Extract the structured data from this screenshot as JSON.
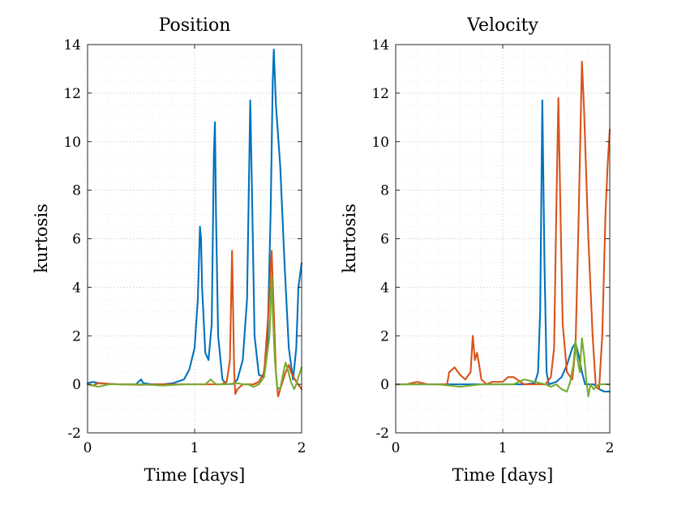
{
  "colors": {
    "blue": "#0072BD",
    "orange": "#D95319",
    "green": "#77AC30"
  },
  "chart_data": [
    {
      "type": "line",
      "title": "Position",
      "xlabel": "Time [days]",
      "ylabel": "kurtosis",
      "xlim": [
        0,
        2
      ],
      "ylim": [
        -2,
        14
      ],
      "xticks": [
        0,
        1,
        2
      ],
      "yticks": [
        -2,
        0,
        2,
        4,
        6,
        8,
        10,
        12,
        14
      ],
      "grid": true,
      "series": [
        {
          "name": "blue",
          "color": "#0072BD",
          "points": [
            [
              0,
              0.05
            ],
            [
              0.05,
              0.1
            ],
            [
              0.1,
              0.05
            ],
            [
              0.2,
              0.02
            ],
            [
              0.3,
              0
            ],
            [
              0.45,
              0
            ],
            [
              0.5,
              0.2
            ],
            [
              0.52,
              0.05
            ],
            [
              0.6,
              0
            ],
            [
              0.7,
              0
            ],
            [
              0.8,
              0.05
            ],
            [
              0.9,
              0.2
            ],
            [
              0.95,
              0.6
            ],
            [
              1.0,
              1.5
            ],
            [
              1.03,
              3.5
            ],
            [
              1.05,
              6.5
            ],
            [
              1.06,
              6.0
            ],
            [
              1.07,
              4
            ],
            [
              1.1,
              1.3
            ],
            [
              1.13,
              1.0
            ],
            [
              1.16,
              2.5
            ],
            [
              1.18,
              9.5
            ],
            [
              1.19,
              10.8
            ],
            [
              1.2,
              7
            ],
            [
              1.22,
              2
            ],
            [
              1.26,
              0.2
            ],
            [
              1.3,
              0
            ],
            [
              1.36,
              0.02
            ],
            [
              1.4,
              0.2
            ],
            [
              1.45,
              1.0
            ],
            [
              1.49,
              3.5
            ],
            [
              1.52,
              11.7
            ],
            [
              1.54,
              7
            ],
            [
              1.56,
              2
            ],
            [
              1.6,
              0.4
            ],
            [
              1.64,
              0.3
            ],
            [
              1.68,
              1.5
            ],
            [
              1.71,
              7
            ],
            [
              1.73,
              12.5
            ],
            [
              1.74,
              13.8
            ],
            [
              1.76,
              11.5
            ],
            [
              1.8,
              9
            ],
            [
              1.84,
              5
            ],
            [
              1.88,
              1.5
            ],
            [
              1.92,
              0.2
            ],
            [
              1.95,
              1.5
            ],
            [
              1.97,
              4.0
            ],
            [
              2.0,
              5.0
            ]
          ]
        },
        {
          "name": "orange",
          "color": "#D95319",
          "points": [
            [
              0,
              0
            ],
            [
              0.05,
              -0.05
            ],
            [
              0.1,
              0.05
            ],
            [
              0.2,
              0.02
            ],
            [
              0.3,
              0
            ],
            [
              0.5,
              -0.02
            ],
            [
              0.7,
              0
            ],
            [
              0.9,
              0
            ],
            [
              1.1,
              0
            ],
            [
              1.2,
              0
            ],
            [
              1.25,
              0
            ],
            [
              1.3,
              0.1
            ],
            [
              1.33,
              1.0
            ],
            [
              1.35,
              5.5
            ],
            [
              1.36,
              3.0
            ],
            [
              1.37,
              0.5
            ],
            [
              1.38,
              -0.4
            ],
            [
              1.4,
              -0.2
            ],
            [
              1.45,
              0
            ],
            [
              1.5,
              0
            ],
            [
              1.55,
              0
            ],
            [
              1.6,
              0.1
            ],
            [
              1.65,
              0.5
            ],
            [
              1.69,
              3
            ],
            [
              1.72,
              5.5
            ],
            [
              1.74,
              3
            ],
            [
              1.76,
              0.5
            ],
            [
              1.78,
              -0.5
            ],
            [
              1.8,
              -0.2
            ],
            [
              1.85,
              0.5
            ],
            [
              1.88,
              0.8
            ],
            [
              1.9,
              0.5
            ],
            [
              1.95,
              0.1
            ],
            [
              2.0,
              -0.2
            ]
          ]
        },
        {
          "name": "green",
          "color": "#77AC30",
          "points": [
            [
              0,
              0
            ],
            [
              0.1,
              -0.1
            ],
            [
              0.2,
              0
            ],
            [
              0.3,
              0
            ],
            [
              0.5,
              0
            ],
            [
              0.7,
              -0.05
            ],
            [
              0.9,
              0
            ],
            [
              1.1,
              0
            ],
            [
              1.15,
              0.2
            ],
            [
              1.2,
              0
            ],
            [
              1.3,
              0
            ],
            [
              1.4,
              0.05
            ],
            [
              1.45,
              0
            ],
            [
              1.5,
              0
            ],
            [
              1.55,
              -0.1
            ],
            [
              1.6,
              0
            ],
            [
              1.65,
              0.3
            ],
            [
              1.7,
              2
            ],
            [
              1.72,
              4.5
            ],
            [
              1.73,
              3
            ],
            [
              1.75,
              1.0
            ],
            [
              1.77,
              -0.1
            ],
            [
              1.8,
              -0.2
            ],
            [
              1.83,
              0.5
            ],
            [
              1.85,
              0.9
            ],
            [
              1.87,
              0.6
            ],
            [
              1.9,
              0.1
            ],
            [
              1.93,
              -0.2
            ],
            [
              1.95,
              0
            ],
            [
              1.97,
              0.3
            ],
            [
              2.0,
              0.7
            ]
          ]
        }
      ]
    },
    {
      "type": "line",
      "title": "Velocity",
      "xlabel": "Time [days]",
      "ylabel": "kurtosis",
      "xlim": [
        0,
        2
      ],
      "ylim": [
        -2,
        14
      ],
      "xticks": [
        0,
        1,
        2
      ],
      "yticks": [
        -2,
        0,
        2,
        4,
        6,
        8,
        10,
        12,
        14
      ],
      "grid": true,
      "series": [
        {
          "name": "blue",
          "color": "#0072BD",
          "points": [
            [
              0,
              0
            ],
            [
              0.2,
              0
            ],
            [
              0.4,
              0
            ],
            [
              0.6,
              0
            ],
            [
              0.8,
              0
            ],
            [
              1.0,
              0
            ],
            [
              1.2,
              0
            ],
            [
              1.3,
              0.05
            ],
            [
              1.33,
              0.5
            ],
            [
              1.35,
              3
            ],
            [
              1.37,
              11.7
            ],
            [
              1.39,
              5
            ],
            [
              1.41,
              0.5
            ],
            [
              1.43,
              0
            ],
            [
              1.5,
              0.1
            ],
            [
              1.55,
              0.3
            ],
            [
              1.6,
              0.8
            ],
            [
              1.65,
              1.5
            ],
            [
              1.68,
              1.7
            ],
            [
              1.71,
              1.2
            ],
            [
              1.74,
              0.5
            ],
            [
              1.77,
              0
            ],
            [
              1.8,
              0
            ],
            [
              1.85,
              0
            ],
            [
              1.9,
              -0.2
            ],
            [
              1.95,
              -0.3
            ],
            [
              2.0,
              -0.3
            ]
          ]
        },
        {
          "name": "orange",
          "color": "#D95319",
          "points": [
            [
              0,
              0
            ],
            [
              0.1,
              0
            ],
            [
              0.2,
              0.1
            ],
            [
              0.3,
              0
            ],
            [
              0.4,
              0
            ],
            [
              0.48,
              0
            ],
            [
              0.5,
              0.5
            ],
            [
              0.55,
              0.7
            ],
            [
              0.6,
              0.4
            ],
            [
              0.65,
              0.2
            ],
            [
              0.7,
              0.5
            ],
            [
              0.72,
              2.0
            ],
            [
              0.74,
              1.0
            ],
            [
              0.76,
              1.3
            ],
            [
              0.78,
              0.8
            ],
            [
              0.8,
              0.2
            ],
            [
              0.85,
              0
            ],
            [
              0.9,
              0.1
            ],
            [
              1.0,
              0.1
            ],
            [
              1.05,
              0.3
            ],
            [
              1.1,
              0.3
            ],
            [
              1.2,
              0
            ],
            [
              1.3,
              0
            ],
            [
              1.4,
              0
            ],
            [
              1.45,
              0.3
            ],
            [
              1.48,
              1.5
            ],
            [
              1.5,
              7
            ],
            [
              1.52,
              11.8
            ],
            [
              1.54,
              7
            ],
            [
              1.56,
              2.5
            ],
            [
              1.6,
              0.5
            ],
            [
              1.65,
              0.2
            ],
            [
              1.68,
              1.5
            ],
            [
              1.71,
              7
            ],
            [
              1.74,
              13.3
            ],
            [
              1.76,
              11.3
            ],
            [
              1.8,
              6
            ],
            [
              1.84,
              2
            ],
            [
              1.87,
              -0.1
            ],
            [
              1.9,
              -0.2
            ],
            [
              1.93,
              2
            ],
            [
              1.96,
              7
            ],
            [
              1.98,
              9
            ],
            [
              2.0,
              10.5
            ]
          ]
        },
        {
          "name": "green",
          "color": "#77AC30",
          "points": [
            [
              0,
              0
            ],
            [
              0.2,
              0
            ],
            [
              0.4,
              0
            ],
            [
              0.6,
              -0.1
            ],
            [
              0.8,
              0
            ],
            [
              1.0,
              0
            ],
            [
              1.1,
              0
            ],
            [
              1.2,
              0.2
            ],
            [
              1.3,
              0.1
            ],
            [
              1.4,
              0
            ],
            [
              1.45,
              -0.1
            ],
            [
              1.5,
              0
            ],
            [
              1.55,
              -0.2
            ],
            [
              1.6,
              -0.3
            ],
            [
              1.63,
              0.1
            ],
            [
              1.66,
              0.8
            ],
            [
              1.68,
              1.8
            ],
            [
              1.7,
              1.0
            ],
            [
              1.72,
              0.5
            ],
            [
              1.74,
              1.9
            ],
            [
              1.76,
              1.2
            ],
            [
              1.78,
              0.2
            ],
            [
              1.8,
              -0.5
            ],
            [
              1.82,
              0
            ],
            [
              1.85,
              -0.2
            ],
            [
              1.9,
              0
            ],
            [
              1.95,
              0
            ],
            [
              2.0,
              0
            ]
          ]
        }
      ]
    }
  ]
}
